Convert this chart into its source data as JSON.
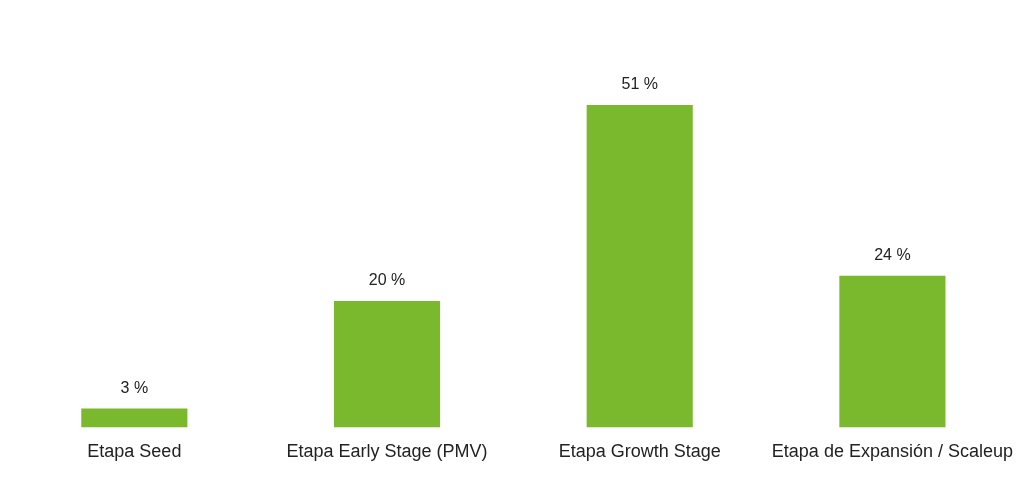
{
  "chart_data": {
    "type": "bar",
    "categories": [
      "Etapa Seed",
      "Etapa Early Stage (PMV)",
      "Etapa Growth Stage",
      "Etapa de Expansión / Scaleup"
    ],
    "values": [
      3,
      20,
      51,
      24
    ],
    "value_labels": [
      "3 %",
      "20 %",
      "51 %",
      "24 %"
    ],
    "color": "#7ab92e",
    "grid": false,
    "legend": false
  }
}
